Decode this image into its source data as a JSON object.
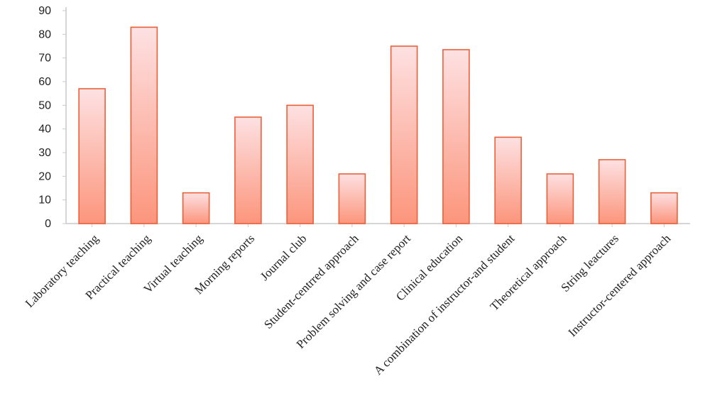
{
  "chart_data": {
    "type": "bar",
    "title": "",
    "xlabel": "",
    "ylabel": "",
    "ylim": [
      0,
      90
    ],
    "y_ticks": [
      0,
      10,
      20,
      30,
      40,
      50,
      60,
      70,
      80,
      90
    ],
    "grid": false,
    "legend": "none",
    "categories": [
      "Laboratory teaching",
      "Practical teaching",
      "Virtual teaching",
      "Morning reports",
      "Journal club",
      "Student-centrred approach",
      "Problem solving and case report",
      "Clinical education",
      "A combination of instructor-and student",
      "Theoretical approach",
      "String leactures",
      "Instructor-centered approach"
    ],
    "values": [
      57,
      83,
      13,
      45,
      50,
      21,
      75,
      73.5,
      36.5,
      21,
      27,
      13
    ]
  },
  "colors": {
    "bar_top": "#fde1e2",
    "bar_bottom": "#fc957c",
    "bar_border": "#e8603a",
    "axis": "#c8c8c8"
  }
}
